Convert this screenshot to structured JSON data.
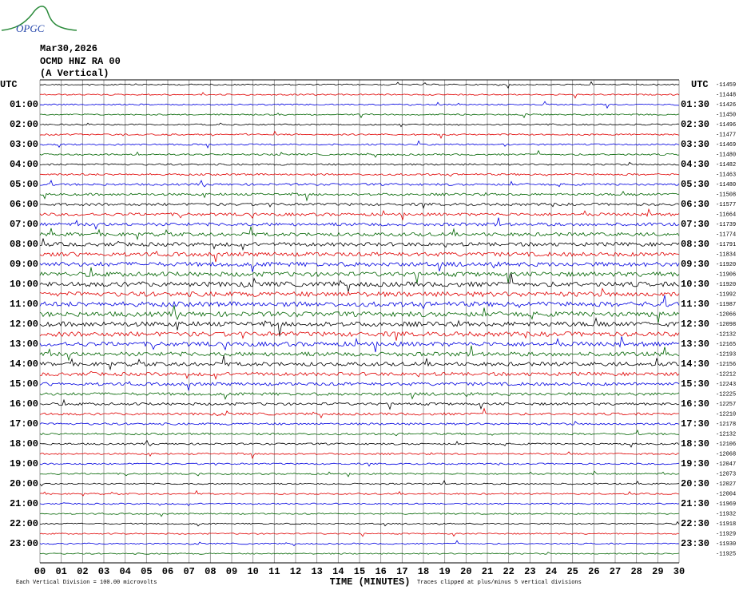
{
  "header": {
    "logo": "OPGC",
    "date": "Mar30,2026",
    "station": "OCMD HNZ RA 00",
    "component": "(A Vertical)"
  },
  "left_labels": [
    "UTC",
    "01:00",
    "02:00",
    "03:00",
    "04:00",
    "05:00",
    "06:00",
    "07:00",
    "08:00",
    "09:00",
    "10:00",
    "11:00",
    "12:00",
    "13:00",
    "14:00",
    "15:00",
    "16:00",
    "17:00",
    "18:00",
    "19:00",
    "20:00",
    "21:00",
    "22:00",
    "23:00"
  ],
  "right_labels": [
    "UTC",
    "01:30",
    "02:30",
    "03:30",
    "04:30",
    "05:30",
    "06:30",
    "07:30",
    "08:30",
    "09:30",
    "10:30",
    "11:30",
    "12:30",
    "13:30",
    "14:30",
    "15:30",
    "16:30",
    "17:30",
    "18:30",
    "19:30",
    "20:30",
    "21:30",
    "22:30",
    "23:30"
  ],
  "trace_offsets": [
    -11459,
    -11448,
    -11426,
    -11450,
    -11496,
    -11477,
    -11469,
    -11480,
    -11482,
    -11463,
    -11480,
    -11508,
    -11577,
    -11664,
    -11739,
    -11774,
    -11791,
    -11834,
    -11920,
    -11906,
    -11920,
    -11992,
    -11987,
    -12066,
    -12098,
    -12132,
    -12165,
    -12193,
    -12156,
    -12212,
    -12243,
    -12225,
    -12257,
    -12210,
    -12178,
    -12132,
    -12106,
    -12068,
    -12047,
    -12073,
    -12027,
    -12004,
    -11969,
    -11932,
    -11918,
    -11929,
    -11930,
    -11925
  ],
  "x_ticks": [
    "00",
    "01",
    "02",
    "03",
    "04",
    "05",
    "06",
    "07",
    "08",
    "09",
    "10",
    "11",
    "12",
    "13",
    "14",
    "15",
    "16",
    "17",
    "18",
    "19",
    "20",
    "21",
    "22",
    "23",
    "24",
    "25",
    "26",
    "27",
    "28",
    "29",
    "30"
  ],
  "x_axis_label": "TIME (MINUTES)",
  "footer": {
    "scale_note": "Each Vertical Division =  100.00 microvolts",
    "clip_note": "Traces clipped at plus/minus 5 vertical divisions"
  }
}
